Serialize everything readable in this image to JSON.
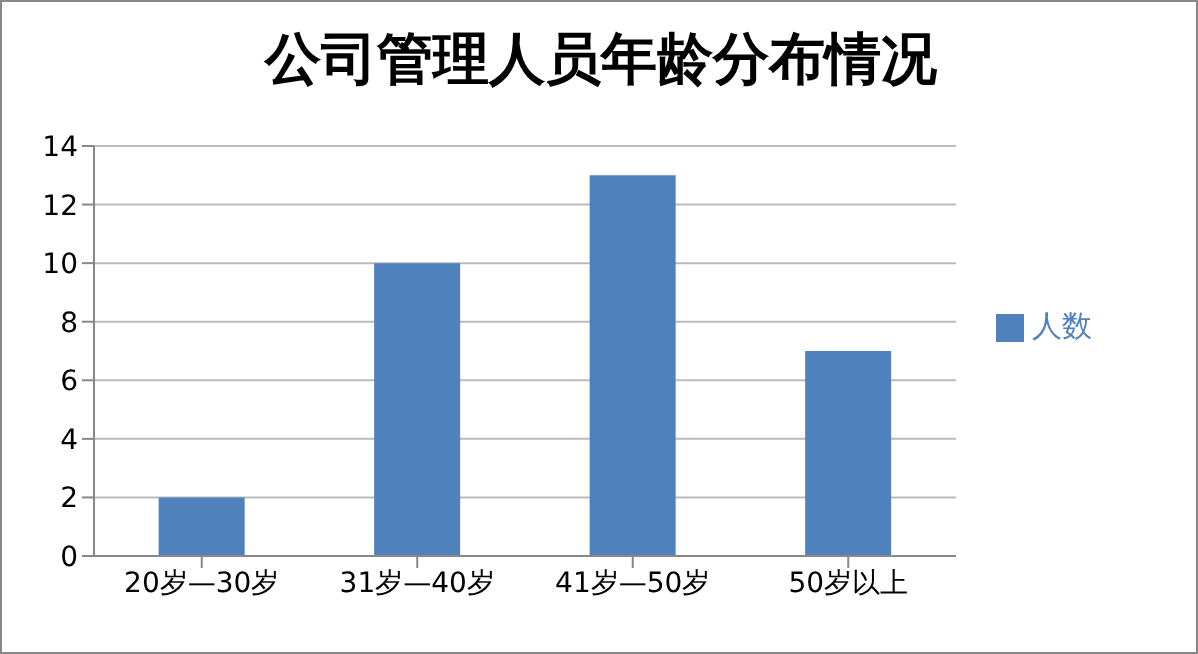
{
  "chart_data": {
    "type": "bar",
    "title": "公司管理人员年龄分布情况",
    "categories": [
      "20岁—30岁",
      "31岁—40岁",
      "41岁—50岁",
      "50岁以上"
    ],
    "series": [
      {
        "name": "人数",
        "color": "#4f81bd",
        "values": [
          2,
          10,
          13,
          7
        ]
      }
    ],
    "ylim": [
      0,
      14
    ],
    "yticks": [
      0,
      2,
      4,
      6,
      8,
      10,
      12,
      14
    ],
    "grid": "y",
    "legend": "right"
  }
}
